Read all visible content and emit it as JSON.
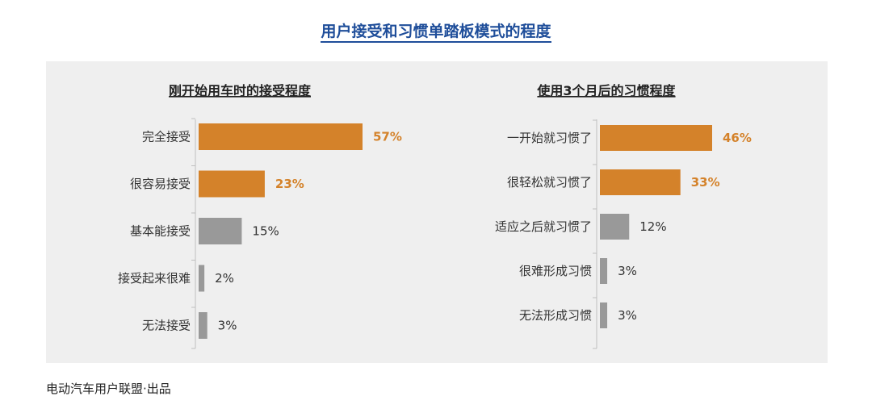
{
  "title": "用户接受和习惯单踏板模式的程度",
  "footer": "电动汽车用户联盟·出品",
  "colors": {
    "highlight": "#d4822a",
    "neutral": "#999999",
    "title": "#1f4e9a"
  },
  "chart_data": [
    {
      "type": "bar",
      "orientation": "horizontal",
      "title": "刚开始用车时的接受程度",
      "categories": [
        "完全接受",
        "很容易接受",
        "基本能接受",
        "接受起来很难",
        "无法接受"
      ],
      "values": [
        57,
        23,
        15,
        2,
        3
      ],
      "value_labels": [
        "57%",
        "23%",
        "15%",
        "2%",
        "3%"
      ],
      "highlighted": [
        true,
        true,
        false,
        false,
        false
      ],
      "xlim": [
        0,
        57
      ],
      "grid": false
    },
    {
      "type": "bar",
      "orientation": "horizontal",
      "title": "使用3个月后的习惯程度",
      "categories": [
        "一开始就习惯了",
        "很轻松就习惯了",
        "适应之后就习惯了",
        "很难形成习惯",
        "无法形成习惯"
      ],
      "values": [
        46,
        33,
        12,
        3,
        3
      ],
      "value_labels": [
        "46%",
        "33%",
        "12%",
        "3%",
        "3%"
      ],
      "highlighted": [
        true,
        true,
        false,
        false,
        false
      ],
      "xlim": [
        0,
        46
      ],
      "grid": false
    }
  ]
}
